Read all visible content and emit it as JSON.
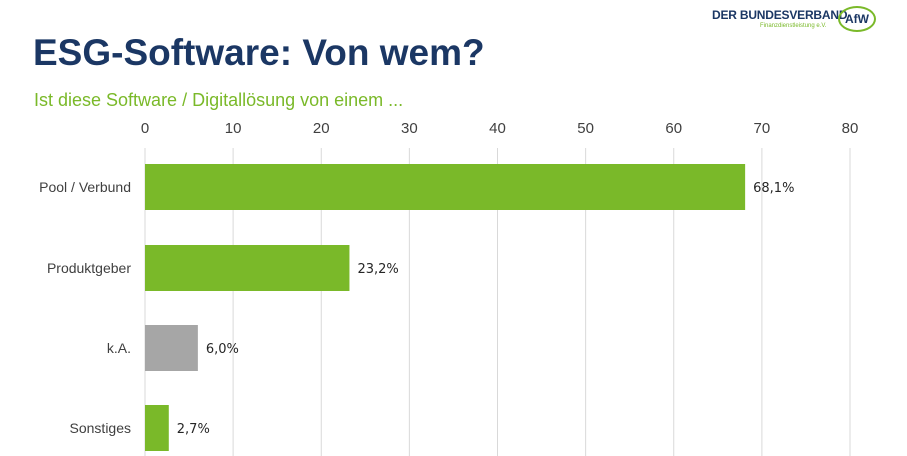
{
  "header": {
    "title": "ESG-Software: Von wem?",
    "subtitle": "Ist diese Software / Digitallösung von einem ...",
    "logo": {
      "line1": "DER BUNDESVERBAND",
      "line2": "Finanzdienstleistung e.V.",
      "mark": "AfW"
    }
  },
  "chart_data": {
    "type": "bar",
    "orientation": "horizontal",
    "categories": [
      "Pool / Verbund",
      "Produktgeber",
      "k.A.",
      "Sonstiges"
    ],
    "values": [
      68.1,
      23.2,
      6.0,
      2.7
    ],
    "data_labels": [
      "68,1%",
      "23,2%",
      "6,0%",
      "2,7%"
    ],
    "colors": [
      "#7ab929",
      "#7ab929",
      "#a6a6a6",
      "#7ab929"
    ],
    "xlim": [
      0,
      80
    ],
    "xticks": [
      "0",
      "10",
      "20",
      "30",
      "40",
      "50",
      "60",
      "70",
      "80"
    ],
    "xaxis_position": "top",
    "grid": true
  }
}
